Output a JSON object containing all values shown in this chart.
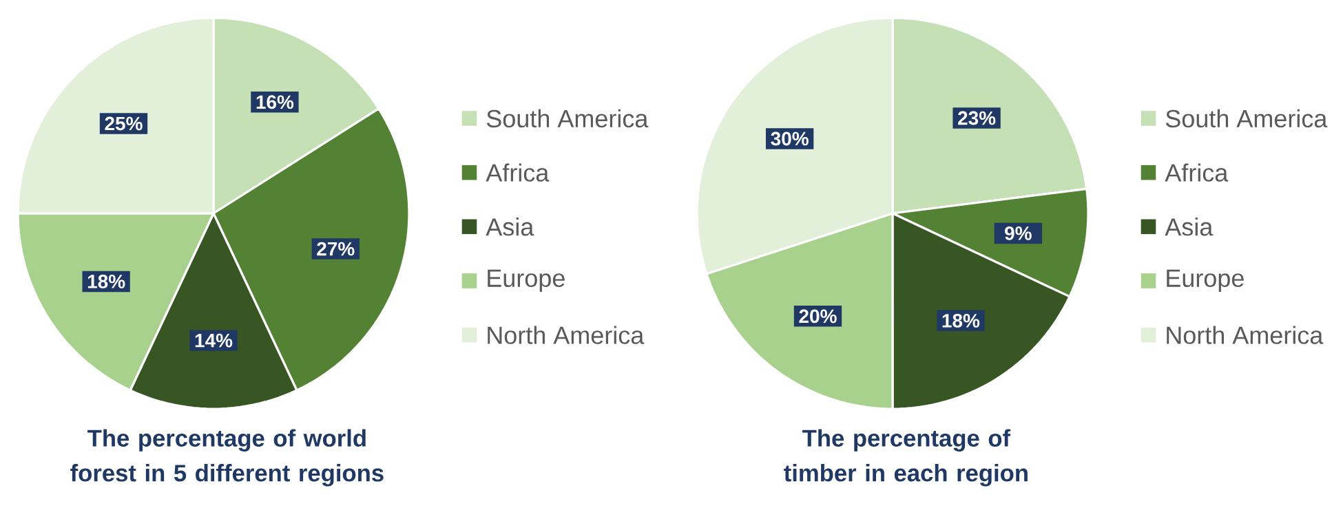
{
  "chart_data": [
    {
      "type": "pie",
      "title": "The percentage of world forest in 5 different regions",
      "categories": [
        "South America",
        "Africa",
        "Asia",
        "Europe",
        "North America"
      ],
      "values": [
        16,
        27,
        14,
        18,
        25
      ],
      "colors": [
        "#c5e0b4",
        "#548235",
        "#375623",
        "#a9d18e",
        "#e2f0d9"
      ],
      "value_labels": [
        "16%",
        "27%",
        "14%",
        "18%",
        "25%"
      ],
      "legend": "right"
    },
    {
      "type": "pie",
      "title": "The percentage of timber in each region",
      "categories": [
        "South America",
        "Africa",
        "Asia",
        "Europe",
        "North America"
      ],
      "values": [
        23,
        9,
        18,
        20,
        30
      ],
      "colors": [
        "#c5e0b4",
        "#548235",
        "#375623",
        "#a9d18e",
        "#e2f0d9"
      ],
      "value_labels": [
        "23%",
        "9%",
        "18%",
        "20%",
        "30%"
      ],
      "legend": "right"
    }
  ]
}
